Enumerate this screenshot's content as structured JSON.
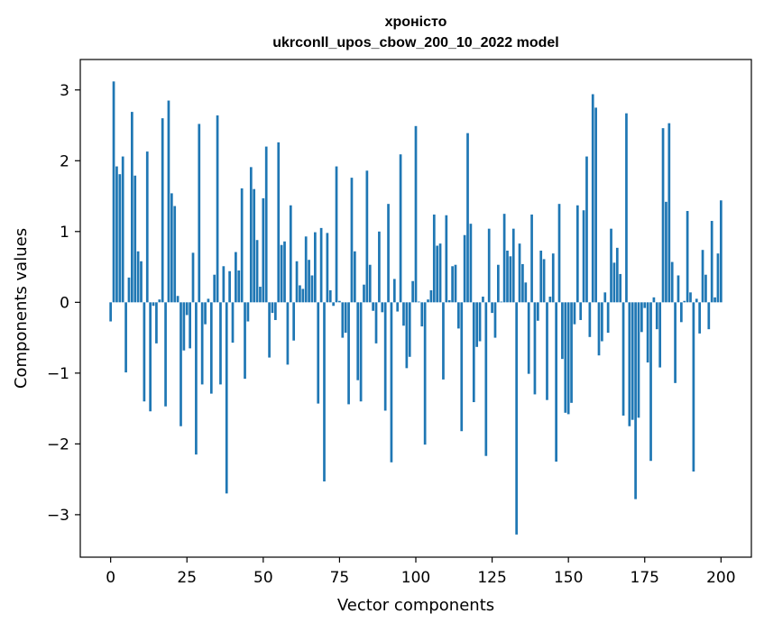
{
  "chart_data": {
    "type": "bar",
    "title_line1": "хроністо",
    "title_line2": "ukrconll_upos_cbow_200_10_2022 model",
    "xlabel": "Vector components",
    "ylabel": "Components values",
    "xlim": [
      -9.95,
      209.95
    ],
    "ylim": [
      -3.6,
      3.43
    ],
    "xticks": [
      0,
      25,
      50,
      75,
      100,
      125,
      150,
      175,
      200
    ],
    "yticks": [
      3,
      2,
      1,
      0,
      -1,
      -2,
      -3
    ],
    "ytick_labels": [
      "3",
      "2",
      "1",
      "0",
      "−1",
      "−2",
      "−3"
    ],
    "grid": false,
    "bar_color": "#1f77b4",
    "values": [
      -0.27,
      3.12,
      1.92,
      1.81,
      2.06,
      -0.99,
      0.35,
      2.69,
      1.79,
      0.72,
      0.58,
      -1.4,
      2.13,
      -1.54,
      -0.05,
      -0.58,
      0.04,
      2.6,
      -1.47,
      2.85,
      1.54,
      1.36,
      0.09,
      -1.75,
      -0.68,
      -0.18,
      -0.65,
      0.7,
      -2.15,
      2.52,
      -1.16,
      -0.31,
      0.05,
      -1.29,
      0.39,
      2.64,
      -1.16,
      0.51,
      -2.7,
      0.44,
      -0.57,
      0.71,
      0.45,
      1.61,
      -1.08,
      -0.27,
      1.91,
      1.6,
      0.88,
      0.22,
      1.47,
      2.2,
      -0.78,
      -0.15,
      -0.25,
      2.26,
      0.81,
      0.86,
      -0.88,
      1.37,
      -0.54,
      0.58,
      0.24,
      0.19,
      0.93,
      0.6,
      0.38,
      0.99,
      -1.43,
      1.05,
      -2.53,
      0.98,
      0.17,
      -0.05,
      1.92,
      0.02,
      -0.5,
      -0.43,
      -1.44,
      1.76,
      0.72,
      -1.1,
      -1.4,
      0.25,
      1.86,
      0.53,
      -0.12,
      -0.58,
      1.0,
      -0.14,
      -1.53,
      1.39,
      -2.26,
      0.33,
      -0.13,
      2.09,
      -0.33,
      -0.93,
      -0.77,
      0.3,
      2.49,
      0.01,
      -0.34,
      -2.01,
      0.04,
      0.17,
      1.24,
      0.8,
      0.83,
      -1.09,
      1.23,
      0.03,
      0.51,
      0.53,
      -0.37,
      -1.82,
      0.95,
      2.39,
      1.11,
      -1.41,
      -0.63,
      -0.55,
      0.08,
      -2.17,
      1.04,
      -0.15,
      -0.5,
      0.53,
      0.01,
      1.25,
      0.73,
      0.65,
      1.04,
      -3.28,
      0.83,
      0.54,
      0.28,
      -1.01,
      1.24,
      -1.3,
      -0.26,
      0.73,
      0.61,
      -1.38,
      0.08,
      0.69,
      -2.25,
      1.39,
      -0.8,
      -1.56,
      -1.58,
      -1.42,
      -0.31,
      1.37,
      -0.25,
      1.3,
      2.06,
      -0.49,
      2.94,
      2.75,
      -0.75,
      -0.55,
      0.14,
      -0.43,
      1.04,
      0.56,
      0.77,
      0.4,
      -1.6,
      2.67,
      -1.75,
      -1.66,
      -2.78,
      -1.63,
      -0.42,
      -0.08,
      -0.85,
      -2.24,
      0.07,
      -0.38,
      -0.92,
      2.46,
      1.42,
      2.53,
      0.57,
      -1.14,
      0.38,
      -0.28,
      0.02,
      1.29,
      0.14,
      -2.39,
      0.05,
      -0.44,
      0.74,
      0.39,
      -0.38,
      1.15,
      0.07,
      0.69,
      1.44
    ]
  }
}
